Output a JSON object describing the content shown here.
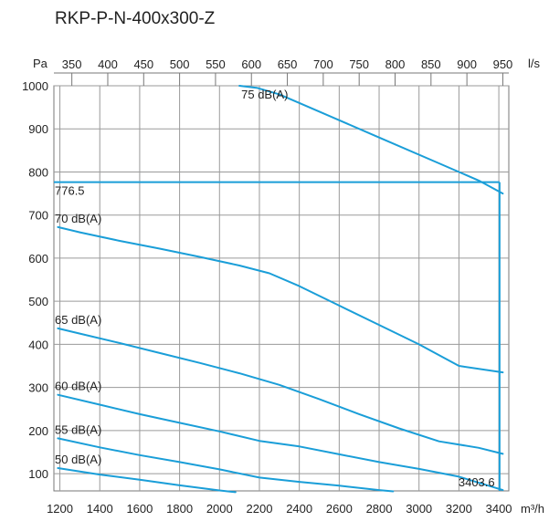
{
  "chart_data": {
    "type": "line",
    "title": "RKP-P-N-400x300-Z",
    "x_unit": "m³/h",
    "x_top_unit": "l/s",
    "y_unit": "Pa",
    "xlim": [
      1170,
      3450
    ],
    "ylim": [
      60,
      1000
    ],
    "x_ticks": [
      1200,
      1400,
      1600,
      1800,
      2000,
      2200,
      2400,
      2600,
      2800,
      3000,
      3200,
      3400
    ],
    "x_tick_labels": [
      "1200",
      "1400",
      "1600",
      "1800",
      "2000",
      "2200",
      "2400",
      "2600",
      "2800",
      "3000",
      "3200",
      "3400"
    ],
    "x_top_ticks": [
      350,
      400,
      450,
      500,
      550,
      600,
      650,
      700,
      750,
      800,
      850,
      900,
      950
    ],
    "x_top_tick_labels": [
      "350",
      "400",
      "450",
      "500",
      "550",
      "600",
      "650",
      "700",
      "750",
      "800",
      "850",
      "900",
      "950"
    ],
    "y_ticks": [
      100,
      200,
      300,
      400,
      500,
      600,
      700,
      800,
      900,
      1000
    ],
    "y_tick_labels": [
      "100",
      "200",
      "300",
      "400",
      "500",
      "600",
      "700",
      "800",
      "900",
      "1000"
    ],
    "grid": true,
    "line_color": "#1a9ed8",
    "operating_point": {
      "x": 3403.6,
      "y": 776.5,
      "x_label": "3403.6",
      "y_label": "776.5"
    },
    "series": [
      {
        "name": "75 dB(A)",
        "x": [
          2100,
          2190,
          2300,
          2500,
          2800,
          3100,
          3300,
          3420
        ],
        "y": [
          1000,
          995,
          980,
          940,
          880,
          820,
          780,
          750
        ]
      },
      {
        "name": "70 dB(A)",
        "x": [
          1190,
          1300,
          1500,
          1700,
          1900,
          2100,
          2250,
          2400,
          2600,
          2800,
          3000,
          3200,
          3420
        ],
        "y": [
          672,
          660,
          640,
          622,
          603,
          583,
          565,
          535,
          490,
          445,
          400,
          350,
          335
        ]
      },
      {
        "name": "65 dB(A)",
        "x": [
          1190,
          1300,
          1500,
          1700,
          1900,
          2100,
          2300,
          2500,
          2700,
          2900,
          3100,
          3300,
          3420
        ],
        "y": [
          437,
          425,
          403,
          380,
          357,
          333,
          306,
          273,
          238,
          205,
          175,
          160,
          146
        ]
      },
      {
        "name": "60 dB(A)",
        "x": [
          1190,
          1400,
          1600,
          1800,
          2000,
          2200,
          2400,
          2600,
          2800,
          3000,
          3200,
          3420
        ],
        "y": [
          283,
          260,
          238,
          218,
          198,
          176,
          163,
          145,
          127,
          111,
          93,
          62
        ]
      },
      {
        "name": "55 dB(A)",
        "x": [
          1190,
          1400,
          1600,
          1800,
          2000,
          2200,
          2400,
          2600,
          2800,
          2870
        ],
        "y": [
          182,
          161,
          143,
          127,
          110,
          91,
          81,
          72,
          62,
          59
        ]
      },
      {
        "name": "50 dB(A)",
        "x": [
          1190,
          1400,
          1600,
          1800,
          2000,
          2080
        ],
        "y": [
          113,
          98,
          86,
          73,
          61,
          57
        ]
      }
    ]
  }
}
